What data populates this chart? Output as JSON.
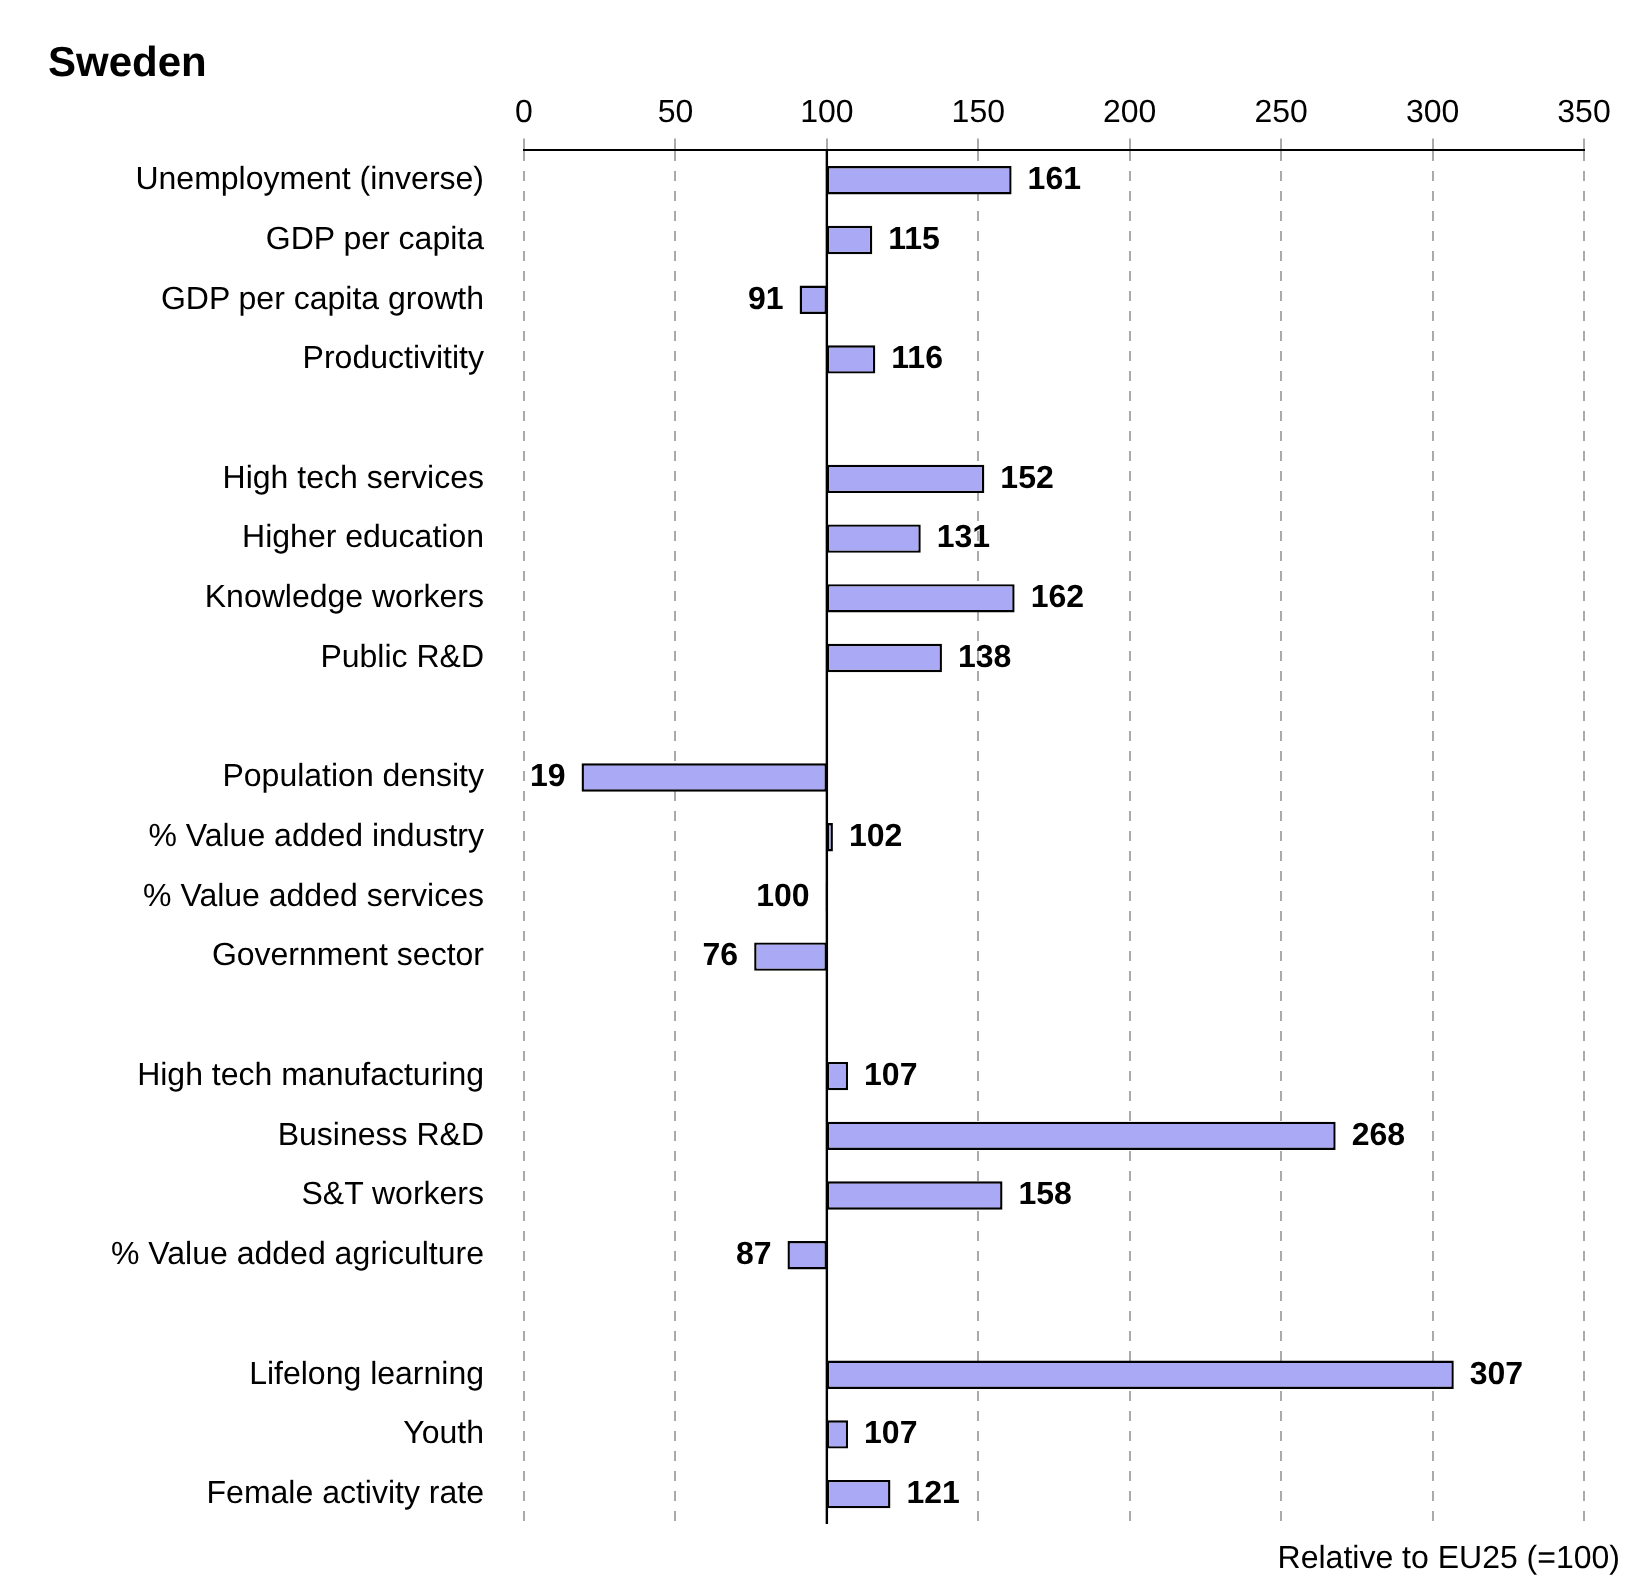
{
  "chart_data": {
    "type": "bar",
    "orientation": "horizontal",
    "title": "Sweden",
    "categories": [
      "Unemployment (inverse)",
      "GDP per capita",
      "GDP per capita growth",
      "Productivitity",
      null,
      "High tech services",
      "Higher education",
      "Knowledge workers",
      "Public R&D",
      null,
      "Population density",
      "% Value added industry",
      "% Value added services",
      "Government sector",
      null,
      "High tech manufacturing",
      "Business R&D",
      "S&T workers",
      "% Value added agriculture",
      null,
      "Lifelong learning",
      "Youth",
      "Female activity rate"
    ],
    "base": [
      100,
      100,
      100,
      100,
      null,
      100,
      100,
      100,
      100,
      null,
      100,
      100,
      100,
      100,
      null,
      100,
      100,
      100,
      100,
      null,
      100,
      100,
      100
    ],
    "values": [
      61,
      15,
      -9,
      16,
      null,
      52,
      31,
      62,
      38,
      null,
      -81,
      2,
      -0.4,
      -24,
      null,
      7,
      168,
      58,
      -13,
      null,
      207,
      7,
      21
    ],
    "value_labels": [
      "161",
      "115",
      "91",
      "116",
      null,
      "152",
      "131",
      "162",
      "138",
      null,
      "19",
      "102",
      "100",
      "76",
      null,
      "107",
      "268",
      "158",
      "87",
      null,
      "307",
      "107",
      "121"
    ],
    "color": "#a9a9f5",
    "xlim": [
      0,
      350
    ],
    "xticks": [
      0,
      50,
      100,
      150,
      200,
      250,
      300,
      350
    ],
    "grid": "x",
    "legend": false,
    "ref_lines": [
      {
        "axis": "x",
        "value": 100
      }
    ],
    "annotations": [
      "Relative to EU25 (=100)"
    ]
  }
}
